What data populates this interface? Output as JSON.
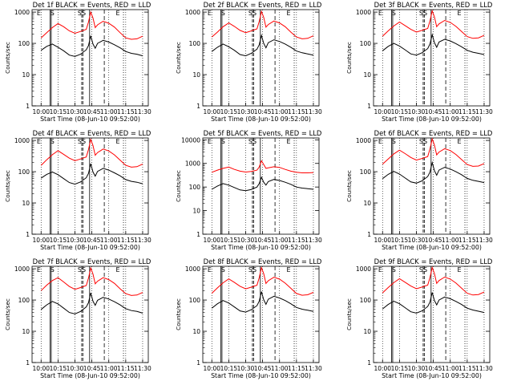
{
  "figure": {
    "xlabel": "Start Time (08-Jun-10 09:52:00)",
    "ylabel": "Counts/sec",
    "x_tick_labels": [
      "10:00",
      "10:15",
      "10:30",
      "10:45",
      "11:00",
      "11:15",
      "11:30"
    ],
    "y_tick_labels": [
      "1",
      "10",
      "100",
      "1000"
    ],
    "series_colors": {
      "events": "#000000",
      "lld": "#ff0000"
    }
  },
  "chart_data": [
    {
      "type": "line",
      "title": "Det 1f BLACK = Events, RED = LLD",
      "xlabel": "Start Time (08-Jun-10 09:52:00)",
      "ylabel": "Counts/sec",
      "y_scale": "log",
      "ylim": [
        1,
        1200
      ],
      "xlim": [
        "09:52",
        "11:35"
      ],
      "x": [
        "10:00",
        "10:05",
        "10:10",
        "10:15",
        "10:20",
        "10:25",
        "10:30",
        "10:35",
        "10:40",
        "10:42",
        "10:44",
        "10:46",
        "10:48",
        "10:50",
        "10:55",
        "11:00",
        "11:05",
        "11:10",
        "11:15",
        "11:20",
        "11:25",
        "11:30"
      ],
      "series": [
        {
          "values": [
            150,
            220,
            320,
            430,
            340,
            250,
            210,
            240,
            280,
            480,
            1000,
            650,
            320,
            390,
            510,
            440,
            330,
            220,
            150,
            135,
            140,
            170
          ]
        },
        {
          "values": [
            60,
            80,
            95,
            75,
            58,
            42,
            38,
            45,
            62,
            85,
            175,
            95,
            70,
            100,
            125,
            110,
            90,
            72,
            55,
            48,
            45,
            40
          ]
        }
      ],
      "annotations": [
        "E",
        "S",
        "SS",
        "E"
      ]
    },
    {
      "type": "line",
      "title": "Det 2f BLACK = Events, RED = LLD",
      "xlabel": "Start Time (08-Jun-10 09:52:00)",
      "ylabel": "Counts/sec",
      "y_scale": "log",
      "ylim": [
        1,
        1200
      ],
      "xlim": [
        "09:52",
        "11:35"
      ],
      "x": [
        "10:00",
        "10:05",
        "10:10",
        "10:15",
        "10:20",
        "10:25",
        "10:30",
        "10:35",
        "10:40",
        "10:42",
        "10:44",
        "10:46",
        "10:48",
        "10:50",
        "10:55",
        "11:00",
        "11:05",
        "11:10",
        "11:15",
        "11:20",
        "11:25",
        "11:30"
      ],
      "series": [
        {
          "values": [
            160,
            230,
            340,
            450,
            350,
            260,
            220,
            250,
            290,
            500,
            1050,
            680,
            330,
            400,
            520,
            450,
            340,
            230,
            160,
            140,
            145,
            175
          ]
        },
        {
          "values": [
            55,
            75,
            95,
            78,
            60,
            44,
            40,
            48,
            65,
            90,
            180,
            100,
            72,
            105,
            130,
            115,
            95,
            75,
            57,
            50,
            46,
            42
          ]
        }
      ],
      "annotations": [
        "E",
        "S",
        "SS",
        "E"
      ]
    },
    {
      "type": "line",
      "title": "Det 3f BLACK = Events, RED = LLD",
      "xlabel": "Start Time (08-Jun-10 09:52:00)",
      "ylabel": "Counts/sec",
      "y_scale": "log",
      "ylim": [
        1,
        1200
      ],
      "xlim": [
        "09:52",
        "11:35"
      ],
      "x": [
        "10:00",
        "10:05",
        "10:10",
        "10:15",
        "10:20",
        "10:25",
        "10:30",
        "10:35",
        "10:40",
        "10:42",
        "10:44",
        "10:46",
        "10:48",
        "10:50",
        "10:55",
        "11:00",
        "11:05",
        "11:10",
        "11:15",
        "11:20",
        "11:25",
        "11:30"
      ],
      "series": [
        {
          "values": [
            170,
            250,
            360,
            480,
            370,
            280,
            230,
            260,
            300,
            520,
            1100,
            700,
            340,
            420,
            540,
            470,
            350,
            240,
            165,
            145,
            150,
            180
          ]
        },
        {
          "values": [
            58,
            80,
            100,
            82,
            62,
            46,
            42,
            50,
            68,
            95,
            190,
            105,
            75,
            110,
            135,
            120,
            98,
            78,
            60,
            52,
            48,
            44
          ]
        }
      ],
      "annotations": [
        "E",
        "S",
        "SS",
        "E"
      ]
    },
    {
      "type": "line",
      "title": "Det 4f BLACK = Events, RED = LLD",
      "xlabel": "Start Time (08-Jun-10 09:52:00)",
      "ylabel": "Counts/sec",
      "y_scale": "log",
      "ylim": [
        1,
        1200
      ],
      "xlim": [
        "09:52",
        "11:35"
      ],
      "x": [
        "10:00",
        "10:05",
        "10:10",
        "10:15",
        "10:20",
        "10:25",
        "10:30",
        "10:35",
        "10:40",
        "10:42",
        "10:44",
        "10:46",
        "10:48",
        "10:50",
        "10:55",
        "11:00",
        "11:05",
        "11:10",
        "11:15",
        "11:20",
        "11:25",
        "11:30"
      ],
      "series": [
        {
          "values": [
            160,
            240,
            350,
            470,
            360,
            270,
            225,
            255,
            295,
            510,
            1080,
            690,
            335,
            410,
            530,
            460,
            345,
            235,
            160,
            140,
            145,
            175
          ]
        },
        {
          "values": [
            62,
            82,
            98,
            80,
            60,
            45,
            40,
            47,
            64,
            88,
            180,
            98,
            72,
            102,
            128,
            112,
            92,
            74,
            56,
            49,
            46,
            41
          ]
        }
      ],
      "annotations": [
        "E",
        "S",
        "SS",
        "E"
      ]
    },
    {
      "type": "line",
      "title": "Det 5f BLACK = Events, RED = LLD",
      "xlabel": "Start Time (08-Jun-10 09:52:00)",
      "ylabel": "Counts/sec",
      "y_scale": "log",
      "ylim": [
        1,
        12000
      ],
      "xlim": [
        "09:52",
        "11:35"
      ],
      "x": [
        "10:00",
        "10:05",
        "10:10",
        "10:15",
        "10:20",
        "10:25",
        "10:30",
        "10:35",
        "10:40",
        "10:42",
        "10:44",
        "10:46",
        "10:48",
        "10:50",
        "10:55",
        "11:00",
        "11:05",
        "11:10",
        "11:15",
        "11:20",
        "11:25",
        "11:30"
      ],
      "series": [
        {
          "values": [
            420,
            520,
            620,
            700,
            560,
            470,
            430,
            460,
            520,
            700,
            1300,
            900,
            620,
            650,
            720,
            680,
            560,
            470,
            420,
            400,
            400,
            410
          ]
        },
        {
          "values": [
            80,
            110,
            140,
            120,
            95,
            75,
            70,
            78,
            100,
            140,
            260,
            160,
            120,
            170,
            210,
            190,
            160,
            130,
            100,
            90,
            85,
            80
          ]
        }
      ],
      "annotations": [
        "E",
        "S",
        "SS",
        "E"
      ]
    },
    {
      "type": "line",
      "title": "Det 6f BLACK = Events, RED = LLD",
      "xlabel": "Start Time (08-Jun-10 09:52:00)",
      "ylabel": "Counts/sec",
      "y_scale": "log",
      "ylim": [
        1,
        1200
      ],
      "xlim": [
        "09:52",
        "11:35"
      ],
      "x": [
        "10:00",
        "10:05",
        "10:10",
        "10:15",
        "10:20",
        "10:25",
        "10:30",
        "10:35",
        "10:40",
        "10:42",
        "10:44",
        "10:46",
        "10:48",
        "10:50",
        "10:55",
        "11:00",
        "11:05",
        "11:10",
        "11:15",
        "11:20",
        "11:25",
        "11:30"
      ],
      "series": [
        {
          "values": [
            175,
            255,
            370,
            490,
            380,
            285,
            235,
            265,
            305,
            530,
            1120,
            710,
            345,
            425,
            545,
            475,
            355,
            245,
            170,
            148,
            152,
            182
          ]
        },
        {
          "values": [
            60,
            82,
            102,
            84,
            63,
            47,
            43,
            51,
            70,
            97,
            195,
            108,
            77,
            112,
            138,
            122,
            100,
            80,
            61,
            53,
            49,
            45
          ]
        }
      ],
      "annotations": [
        "E",
        "S",
        "SS",
        "E"
      ]
    },
    {
      "type": "line",
      "title": "Det 7f BLACK = Events, RED = LLD",
      "xlabel": "Start Time (08-Jun-10 09:52:00)",
      "ylabel": "Counts/sec",
      "y_scale": "log",
      "ylim": [
        1,
        1200
      ],
      "xlim": [
        "09:52",
        "11:35"
      ],
      "x": [
        "10:00",
        "10:05",
        "10:10",
        "10:15",
        "10:20",
        "10:25",
        "10:30",
        "10:35",
        "10:40",
        "10:42",
        "10:44",
        "10:46",
        "10:48",
        "10:50",
        "10:55",
        "11:00",
        "11:05",
        "11:10",
        "11:15",
        "11:20",
        "11:25",
        "11:30"
      ],
      "series": [
        {
          "values": [
            200,
            300,
            420,
            520,
            380,
            270,
            220,
            250,
            290,
            500,
            1060,
            680,
            330,
            400,
            520,
            450,
            340,
            230,
            160,
            140,
            145,
            175
          ]
        },
        {
          "values": [
            50,
            70,
            90,
            75,
            55,
            40,
            36,
            43,
            60,
            82,
            170,
            92,
            68,
            98,
            122,
            108,
            88,
            70,
            53,
            46,
            43,
            38
          ]
        }
      ],
      "annotations": [
        "E",
        "S",
        "SS",
        "E"
      ]
    },
    {
      "type": "line",
      "title": "Det 8f BLACK = Events, RED = LLD",
      "xlabel": "Start Time (08-Jun-10 09:52:00)",
      "ylabel": "Counts/sec",
      "y_scale": "log",
      "ylim": [
        1,
        1200
      ],
      "xlim": [
        "09:52",
        "11:35"
      ],
      "x": [
        "10:00",
        "10:05",
        "10:10",
        "10:15",
        "10:20",
        "10:25",
        "10:30",
        "10:35",
        "10:40",
        "10:42",
        "10:44",
        "10:46",
        "10:48",
        "10:50",
        "10:55",
        "11:00",
        "11:05",
        "11:10",
        "11:15",
        "11:20",
        "11:25",
        "11:30"
      ],
      "series": [
        {
          "values": [
            165,
            245,
            355,
            475,
            365,
            275,
            228,
            258,
            298,
            515,
            1090,
            695,
            338,
            415,
            535,
            465,
            348,
            238,
            162,
            142,
            147,
            177
          ]
        },
        {
          "values": [
            55,
            76,
            96,
            80,
            60,
            45,
            41,
            49,
            66,
            92,
            185,
            102,
            73,
            106,
            132,
            116,
            96,
            76,
            58,
            51,
            47,
            43
          ]
        }
      ],
      "annotations": [
        "E",
        "S",
        "SS",
        "E"
      ]
    },
    {
      "type": "line",
      "title": "Det 9f BLACK = Events, RED = LLD",
      "xlabel": "Start Time (08-Jun-10 09:52:00)",
      "ylabel": "Counts/sec",
      "y_scale": "log",
      "ylim": [
        1,
        1200
      ],
      "xlim": [
        "09:52",
        "11:35"
      ],
      "x": [
        "10:00",
        "10:05",
        "10:10",
        "10:15",
        "10:20",
        "10:25",
        "10:30",
        "10:35",
        "10:40",
        "10:42",
        "10:44",
        "10:46",
        "10:48",
        "10:50",
        "10:55",
        "11:00",
        "11:05",
        "11:10",
        "11:15",
        "11:20",
        "11:25",
        "11:30"
      ],
      "series": [
        {
          "values": [
            170,
            250,
            360,
            480,
            370,
            280,
            230,
            260,
            300,
            520,
            1100,
            700,
            340,
            420,
            540,
            470,
            350,
            240,
            165,
            145,
            150,
            180
          ]
        },
        {
          "values": [
            52,
            72,
            92,
            76,
            57,
            42,
            38,
            45,
            62,
            86,
            175,
            96,
            70,
            100,
            125,
            110,
            90,
            72,
            55,
            48,
            44,
            40
          ]
        }
      ],
      "annotations": [
        "E",
        "S",
        "SS",
        "E"
      ]
    }
  ]
}
